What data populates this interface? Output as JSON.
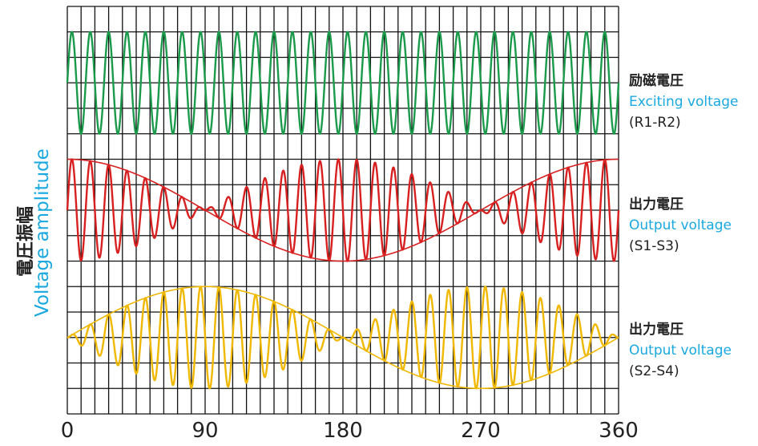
{
  "chart_data": {
    "type": "line",
    "x_ticks": [
      "0",
      "90",
      "180",
      "270",
      "360"
    ],
    "xlim": [
      0,
      360
    ],
    "ylabel_ja": "電圧振幅",
    "ylabel_en": "Voltage amplitude",
    "grid": true,
    "series": [
      {
        "label_ja": "励磁電圧",
        "label_en": "Exciting voltage",
        "label_code": "(R1-R2)",
        "color": "#1a9a4a",
        "envelope": "constant",
        "carrier_cycles": 30
      },
      {
        "label_ja": "出力電圧",
        "label_en": "Output voltage",
        "label_code": "(S1-S3)",
        "color": "#d82020",
        "envelope": "cos",
        "carrier_cycles": 30
      },
      {
        "label_ja": "出力電圧",
        "label_en": "Output voltage",
        "label_code": "(S2-S4)",
        "color": "#f0b800",
        "envelope": "sin",
        "carrier_cycles": 30
      }
    ]
  }
}
